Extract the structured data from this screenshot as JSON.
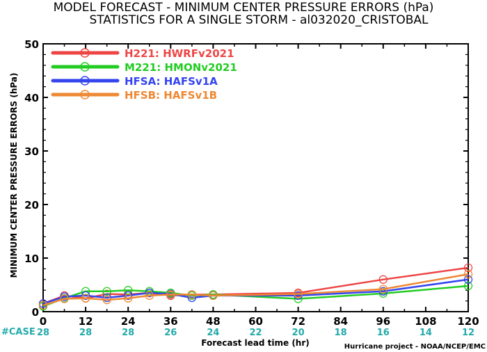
{
  "chart_data": {
    "type": "line",
    "title": "MODEL FORECAST - MINIMUM CENTER PRESSURE ERRORS (hPa)",
    "subtitle": "STATISTICS FOR A SINGLE STORM - al032020_CRISTOBAL",
    "xlabel": "Forecast lead time (hr)",
    "ylabel": "MINIMUM CENTER PRESSURE ERRORS (hPa)",
    "xlim": [
      0,
      120
    ],
    "ylim": [
      0,
      50
    ],
    "x_ticks": [
      0,
      12,
      24,
      36,
      48,
      60,
      72,
      84,
      96,
      108,
      120
    ],
    "y_ticks": [
      0,
      10,
      20,
      30,
      40,
      50
    ],
    "grid": false,
    "legend_position": "top-left",
    "case_label": "#CASE",
    "case_counts": [
      {
        "x": 0,
        "count": "28"
      },
      {
        "x": 12,
        "count": "28"
      },
      {
        "x": 24,
        "count": "28"
      },
      {
        "x": 36,
        "count": "26"
      },
      {
        "x": 48,
        "count": "24"
      },
      {
        "x": 60,
        "count": "22"
      },
      {
        "x": 72,
        "count": "20"
      },
      {
        "x": 84,
        "count": "18"
      },
      {
        "x": 96,
        "count": "16"
      },
      {
        "x": 108,
        "count": "14"
      },
      {
        "x": 120,
        "count": "12"
      }
    ],
    "series": [
      {
        "name": "H221: HWRFv2021",
        "color": "#ee4444",
        "x": [
          0,
          6,
          12,
          18,
          24,
          30,
          36,
          42,
          48,
          72,
          96,
          120
        ],
        "y": [
          1.5,
          3.0,
          2.5,
          3.3,
          3.2,
          3.5,
          3.0,
          3.2,
          3.2,
          3.5,
          6.0,
          8.2
        ]
      },
      {
        "name": "M221: HMONv2021",
        "color": "#22cc22",
        "x": [
          0,
          6,
          12,
          18,
          24,
          30,
          36,
          42,
          48,
          72,
          96,
          120
        ],
        "y": [
          1.0,
          2.5,
          3.8,
          3.8,
          4.0,
          3.8,
          3.5,
          3.0,
          3.2,
          2.4,
          3.4,
          4.8
        ]
      },
      {
        "name": "HFSA: HAFSv1A",
        "color": "#3344ee",
        "x": [
          0,
          6,
          12,
          18,
          24,
          30,
          36,
          42,
          48,
          72,
          96,
          120
        ],
        "y": [
          1.5,
          2.8,
          3.0,
          2.6,
          3.0,
          3.5,
          3.3,
          2.6,
          3.0,
          3.0,
          3.8,
          6.0
        ]
      },
      {
        "name": "HFSB: HAFSv1B",
        "color": "#ee8833",
        "x": [
          0,
          6,
          12,
          18,
          24,
          30,
          36,
          42,
          48,
          72,
          96,
          120
        ],
        "y": [
          1.2,
          2.4,
          2.5,
          2.2,
          2.5,
          3.0,
          3.2,
          3.2,
          3.0,
          3.3,
          4.2,
          7.0
        ]
      }
    ],
    "case_color": "#22aaaa",
    "credit": "Hurricane project - NOAA/NCEP/EMC"
  }
}
